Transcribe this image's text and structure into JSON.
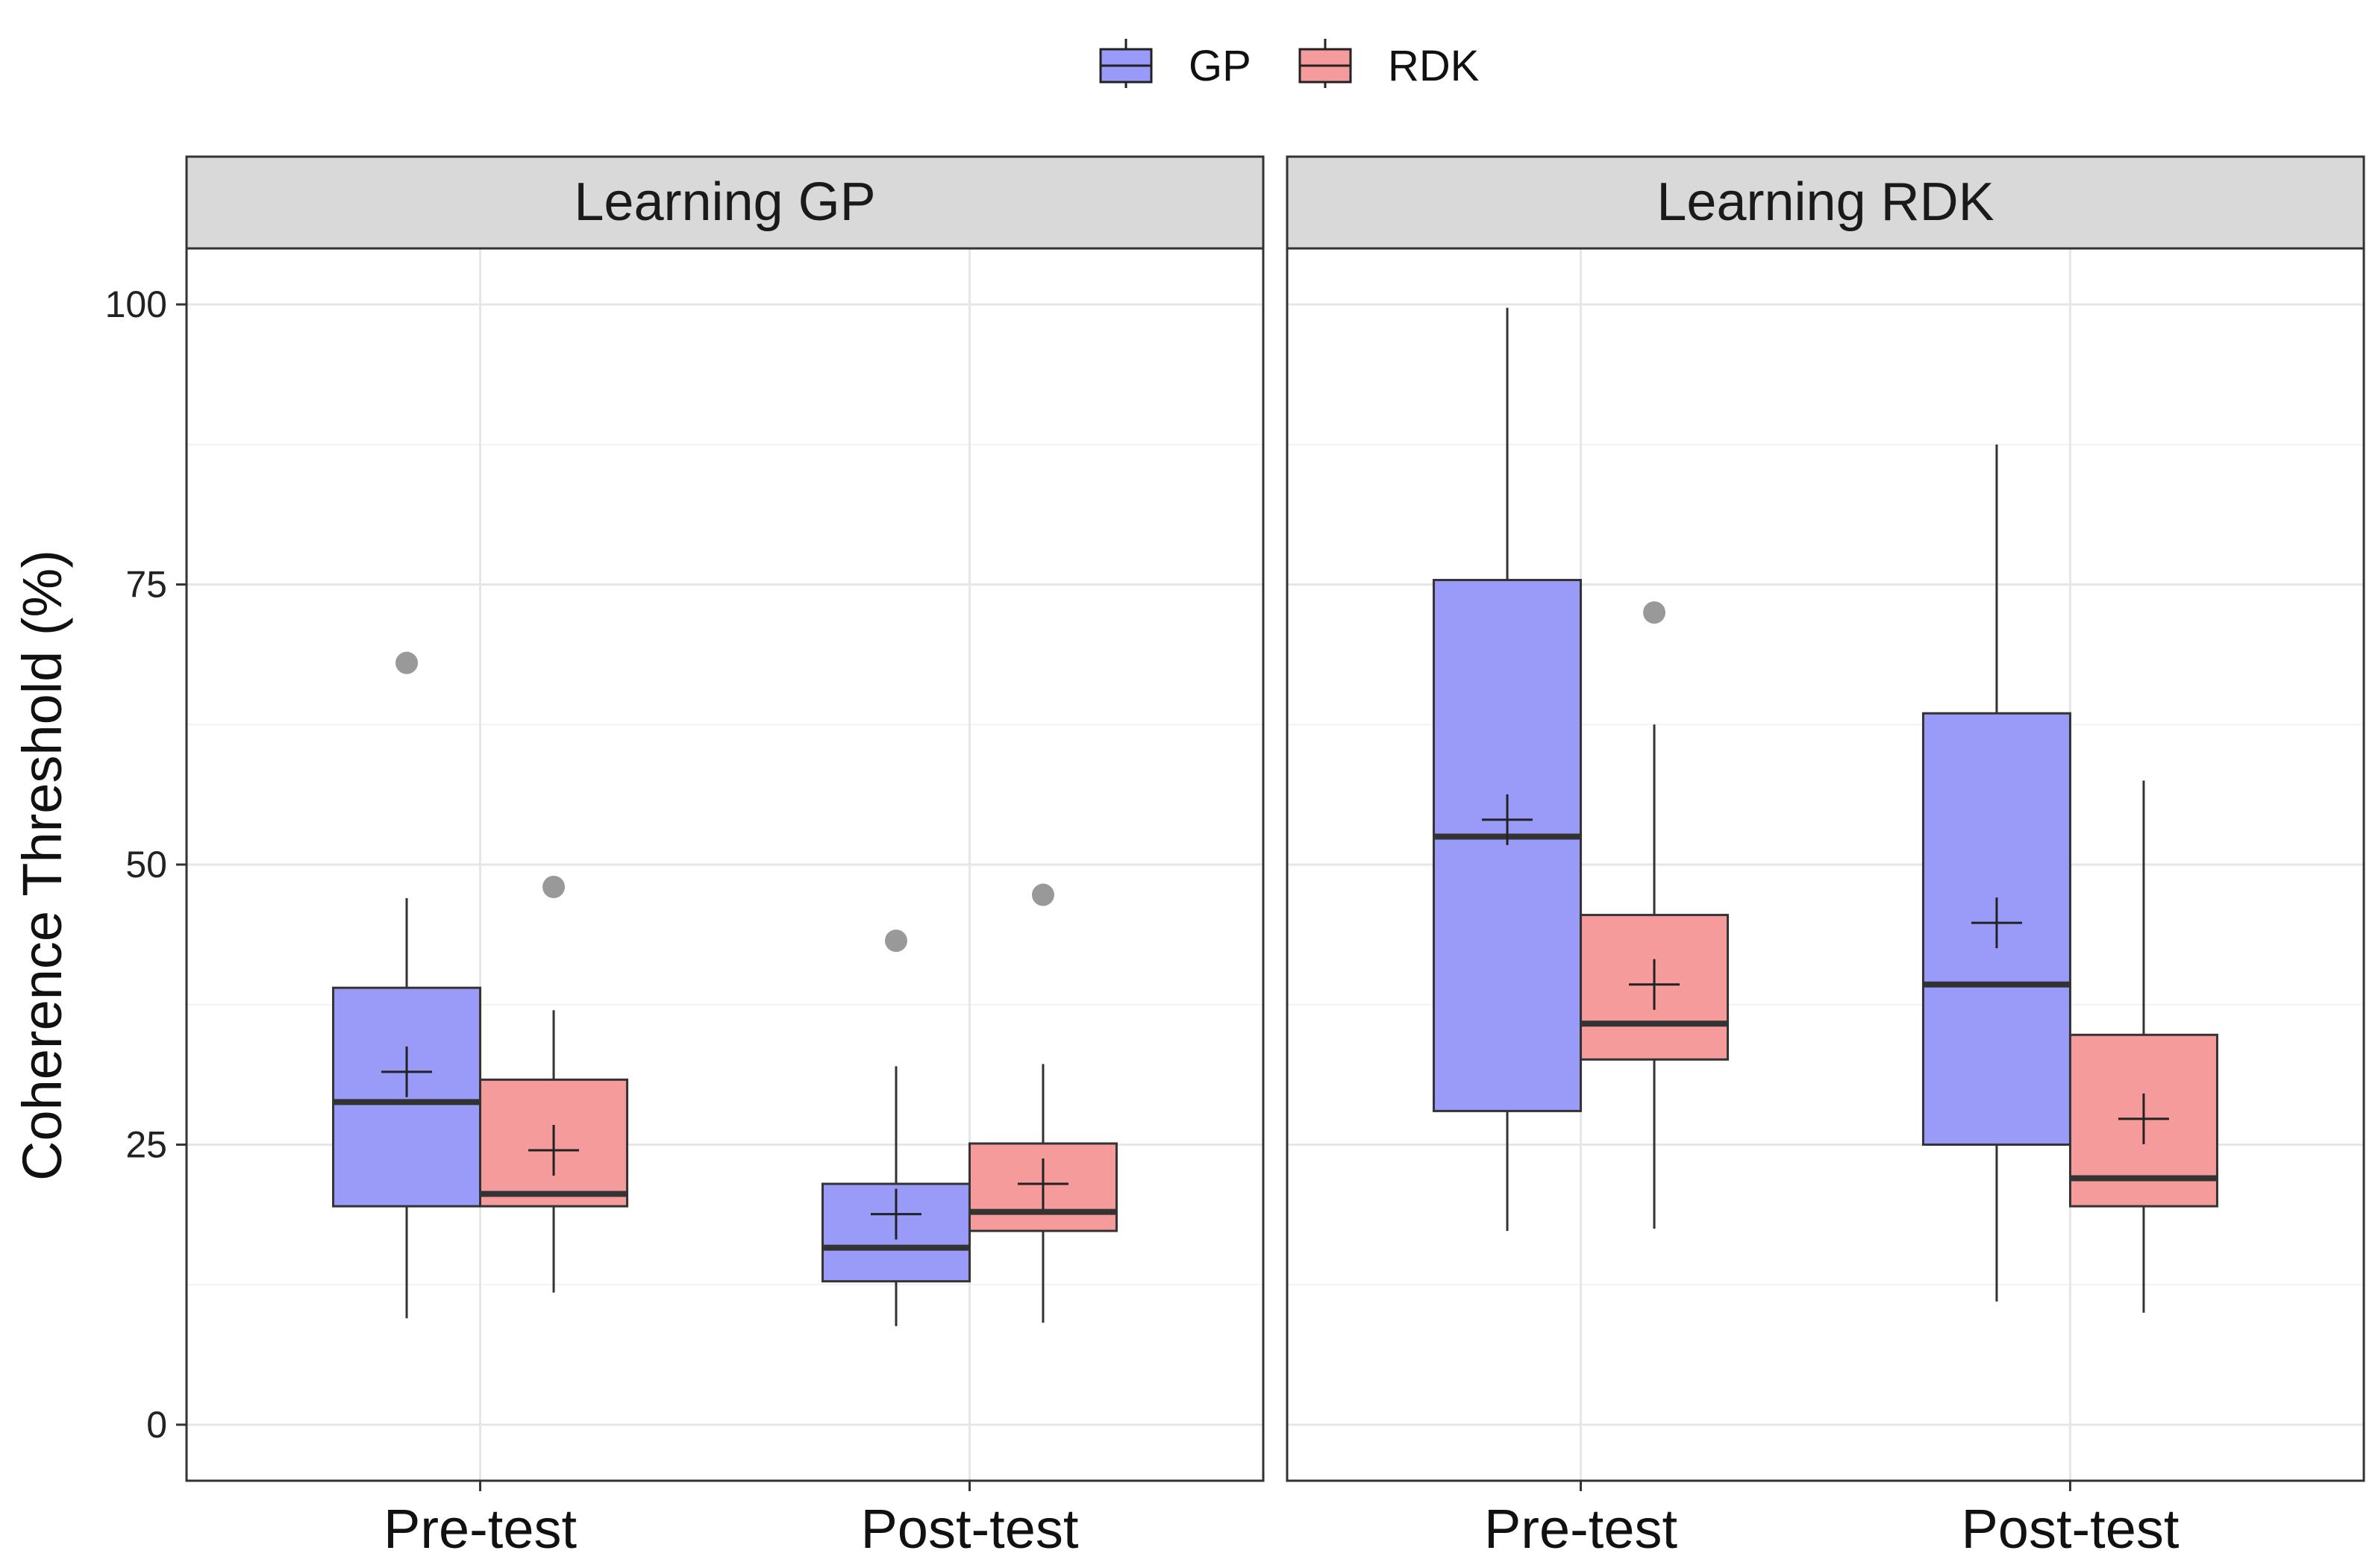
{
  "chart_data": {
    "type": "boxplot",
    "ylabel": "Coherence Threshold (%)",
    "xlabel": "",
    "ylim": [
      -5,
      105
    ],
    "y_ticks": [
      0,
      25,
      50,
      75,
      100
    ],
    "categories": [
      "Pre-test",
      "Post-test"
    ],
    "grid": true,
    "legend": {
      "position": "top-center",
      "entries": [
        {
          "name": "GP",
          "color": "#8c8cf8"
        },
        {
          "name": "RDK",
          "color": "#f88c8c"
        }
      ]
    },
    "colors": {
      "GP": "#9a9af8",
      "RDK": "#f59b9b",
      "outlier": "#999999",
      "strip": "#d9d9d9"
    },
    "facets": [
      {
        "title": "Learning GP",
        "groups": [
          {
            "category": "Pre-test",
            "series": "GP",
            "lower_whisker": 9.5,
            "q1": 19.5,
            "median": 28.8,
            "q3": 39,
            "upper_whisker": 47,
            "mean": 31.5,
            "outliers": [
              68
            ]
          },
          {
            "category": "Pre-test",
            "series": "RDK",
            "lower_whisker": 11.8,
            "q1": 19.5,
            "median": 20.6,
            "q3": 30.8,
            "upper_whisker": 37,
            "mean": 24.5,
            "outliers": [
              48
            ]
          },
          {
            "category": "Post-test",
            "series": "GP",
            "lower_whisker": 8.8,
            "q1": 12.8,
            "median": 15.8,
            "q3": 21.5,
            "upper_whisker": 32,
            "mean": 18.8,
            "outliers": [
              43.2
            ]
          },
          {
            "category": "Post-test",
            "series": "RDK",
            "lower_whisker": 9.1,
            "q1": 17.3,
            "median": 19,
            "q3": 25.1,
            "upper_whisker": 32.2,
            "mean": 21.5,
            "outliers": [
              47.3
            ]
          }
        ]
      },
      {
        "title": "Learning RDK",
        "groups": [
          {
            "category": "Pre-test",
            "series": "GP",
            "lower_whisker": 17.3,
            "q1": 28,
            "median": 52.5,
            "q3": 75.4,
            "upper_whisker": 99.7,
            "mean": 54,
            "outliers": []
          },
          {
            "category": "Pre-test",
            "series": "RDK",
            "lower_whisker": 17.5,
            "q1": 32.6,
            "median": 35.8,
            "q3": 45.5,
            "upper_whisker": 62.5,
            "mean": 39.3,
            "outliers": [
              72.5
            ]
          },
          {
            "category": "Post-test",
            "series": "GP",
            "lower_whisker": 11,
            "q1": 25,
            "median": 39.3,
            "q3": 63.5,
            "upper_whisker": 87.5,
            "mean": 44.8,
            "outliers": []
          },
          {
            "category": "Post-test",
            "series": "RDK",
            "lower_whisker": 10,
            "q1": 19.5,
            "median": 22,
            "q3": 34.8,
            "upper_whisker": 57.5,
            "mean": 27.3,
            "outliers": []
          }
        ]
      }
    ]
  }
}
